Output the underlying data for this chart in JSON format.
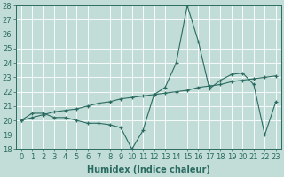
{
  "line1_x": [
    0,
    1,
    2,
    3,
    4,
    5,
    6,
    7,
    8,
    9,
    10,
    11,
    12,
    13,
    14,
    15,
    16,
    17,
    18,
    19,
    20,
    21,
    22,
    23
  ],
  "line1_y": [
    20.0,
    20.5,
    20.5,
    20.2,
    20.2,
    20.0,
    19.8,
    19.8,
    19.7,
    19.5,
    18.0,
    19.3,
    21.8,
    22.3,
    24.0,
    28.0,
    25.5,
    22.2,
    22.8,
    23.2,
    23.3,
    22.5,
    19.0,
    21.3
  ],
  "line2_x": [
    0,
    1,
    2,
    3,
    4,
    5,
    6,
    7,
    8,
    9,
    10,
    11,
    12,
    13,
    14,
    15,
    16,
    17,
    18,
    19,
    20,
    21,
    22,
    23
  ],
  "line2_y": [
    20.0,
    20.2,
    20.4,
    20.6,
    20.7,
    20.8,
    21.0,
    21.2,
    21.3,
    21.5,
    21.6,
    21.7,
    21.8,
    21.9,
    22.0,
    22.1,
    22.3,
    22.4,
    22.5,
    22.7,
    22.8,
    22.9,
    23.0,
    23.1
  ],
  "line_color": "#2A6B61",
  "bg_color": "#C2DDD8",
  "grid_color": "#DAEAE7",
  "xlabel": "Humidex (Indice chaleur)",
  "ylim": [
    18,
    28
  ],
  "xlim": [
    -0.5,
    23.5
  ],
  "yticks": [
    18,
    19,
    20,
    21,
    22,
    23,
    24,
    25,
    26,
    27,
    28
  ],
  "xticks": [
    0,
    1,
    2,
    3,
    4,
    5,
    6,
    7,
    8,
    9,
    10,
    11,
    12,
    13,
    14,
    15,
    16,
    17,
    18,
    19,
    20,
    21,
    22,
    23
  ],
  "xlabel_fontsize": 7,
  "tick_fontsize": 6
}
